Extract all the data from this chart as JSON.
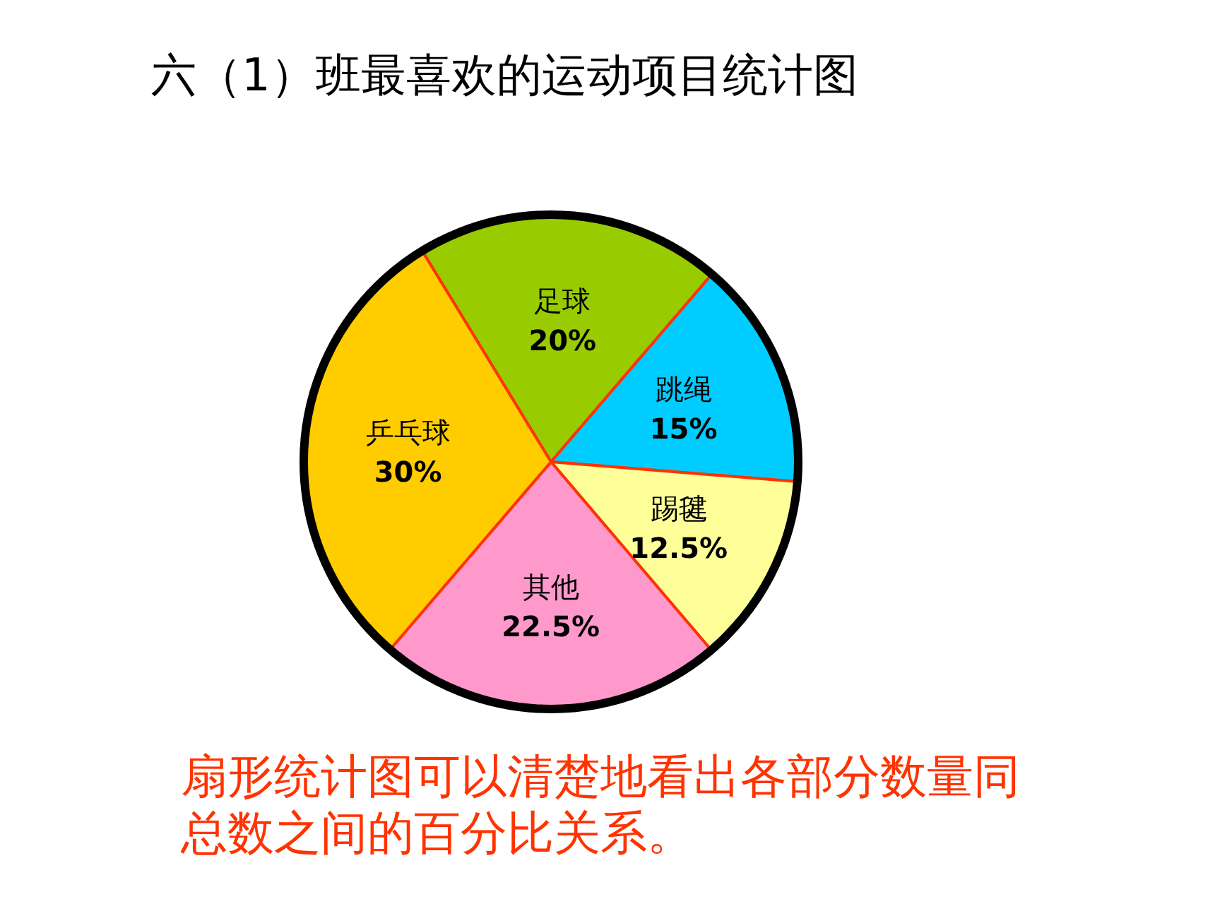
{
  "chart_data": {
    "type": "pie",
    "title": "六（1）班最喜欢的运动项目统计图",
    "categories": [
      "足球",
      "跳绳",
      "踢毽",
      "其他",
      "乒乓球"
    ],
    "values": [
      20,
      15,
      12.5,
      22.5,
      30
    ],
    "value_labels": [
      "20%",
      "15%",
      "12.5%",
      "22.5%",
      "30%"
    ],
    "colors": [
      "#99cc00",
      "#00ccff",
      "#ffff99",
      "#ff99cc",
      "#ffcc00"
    ],
    "annotations": [
      "扇形统计图可以清楚地看出各部分数量同总数之间的百分比关系。"
    ]
  }
}
